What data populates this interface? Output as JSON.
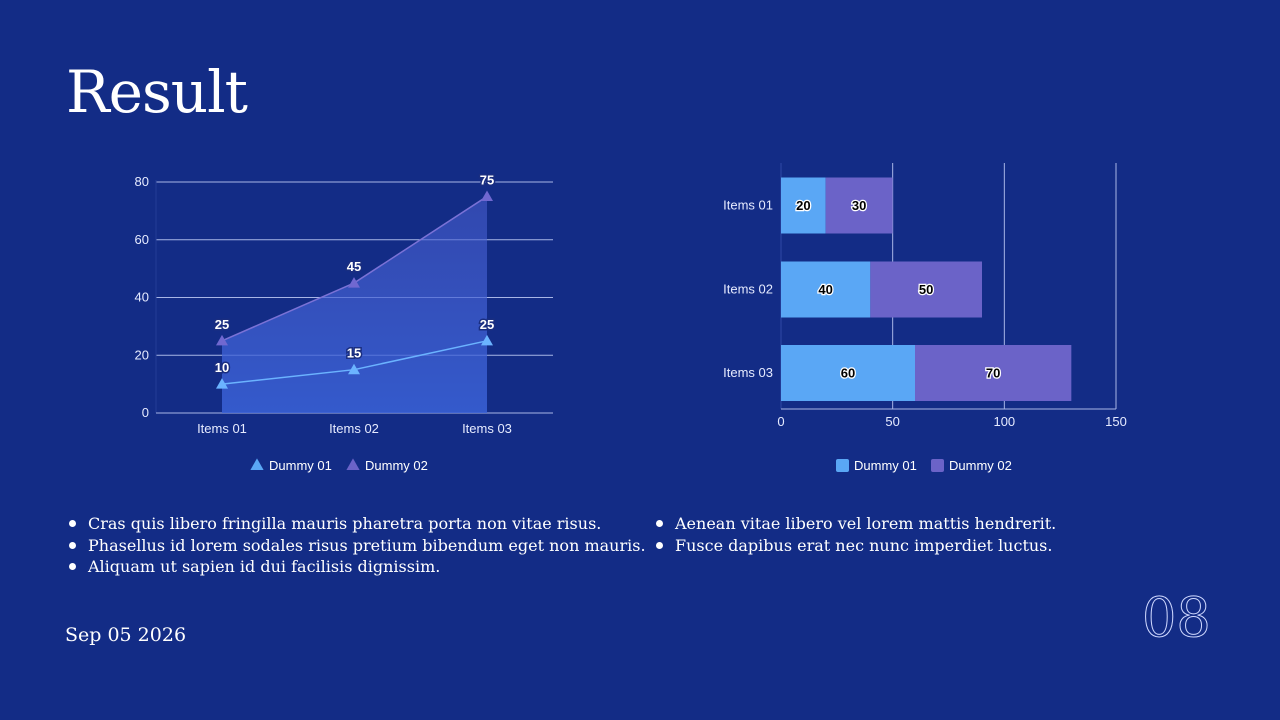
{
  "slide": {
    "title": "Result",
    "date": "Sep 05 2026",
    "page_number": "08"
  },
  "colors": {
    "background": "#132c86",
    "dummy01": "#5aa7f5",
    "dummy02": "#6b63c8",
    "gridline": "#a8b6e6"
  },
  "chart_data": [
    {
      "type": "area",
      "title": "",
      "categories": [
        "Items 01",
        "Items 02",
        "Items 03"
      ],
      "series": [
        {
          "name": "Dummy 01",
          "values": [
            10,
            15,
            25
          ],
          "marker": "triangle"
        },
        {
          "name": "Dummy 02",
          "values": [
            25,
            45,
            75
          ],
          "marker": "triangle"
        }
      ],
      "ylim": [
        0,
        80
      ],
      "yticks": [
        0,
        20,
        40,
        60,
        80
      ],
      "xlabel": "",
      "ylabel": "",
      "grid": true,
      "legend": "bottom"
    },
    {
      "type": "bar",
      "orientation": "horizontal",
      "stacked": true,
      "title": "",
      "categories": [
        "Items 01",
        "Items 02",
        "Items 03"
      ],
      "series": [
        {
          "name": "Dummy 01",
          "values": [
            20,
            40,
            60
          ]
        },
        {
          "name": "Dummy 02",
          "values": [
            30,
            50,
            70
          ]
        }
      ],
      "xlim": [
        0,
        150
      ],
      "xticks": [
        0,
        50,
        100,
        150
      ],
      "xlabel": "",
      "ylabel": "",
      "grid": true,
      "legend": "bottom"
    }
  ],
  "bullets": {
    "left": [
      "Cras quis libero fringilla mauris pharetra porta non vitae risus.",
      "Phasellus id lorem sodales risus pretium bibendum eget non mauris.",
      "Aliquam ut sapien id dui facilisis dignissim."
    ],
    "right": [
      "Aenean vitae libero vel lorem mattis hendrerit.",
      "Fusce dapibus erat nec nunc imperdiet luctus."
    ]
  }
}
